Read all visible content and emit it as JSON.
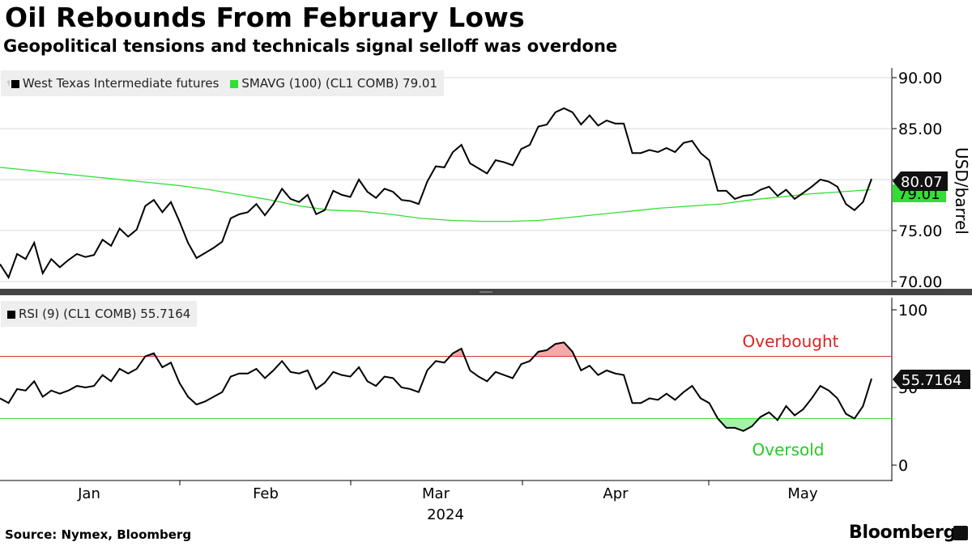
{
  "header": {
    "title": "Oil Rebounds From February Lows",
    "subtitle": "Geopolitical tensions and technicals signal selloff was overdone"
  },
  "footer": {
    "source": "Source: Nymex, Bloomberg",
    "brand": "Bloomberg"
  },
  "chart_data": [
    {
      "type": "line",
      "title": "West Texas Intermediate futures",
      "ylabel": "USD/barrel",
      "ylim": [
        69.5,
        91
      ],
      "yticks": [
        70,
        75,
        80,
        85,
        90
      ],
      "ytick_labels": [
        "70.00",
        "75.00",
        "80.00",
        "85.00",
        "90.00"
      ],
      "legend": [
        "West Texas Intermediate futures",
        "SMAVG (100) (CL1 COMB) 79.01"
      ],
      "last_value_labels": [
        "80.07",
        "79.01"
      ],
      "series": [
        {
          "name": "West Texas Intermediate futures",
          "color": "#000000",
          "values": [
            71.7,
            70.4,
            72.7,
            72.2,
            73.8,
            70.8,
            72.2,
            71.4,
            72.1,
            72.7,
            72.4,
            72.6,
            74.1,
            73.5,
            75.2,
            74.4,
            75.1,
            77.4,
            78.0,
            76.8,
            77.8,
            75.9,
            73.8,
            72.3,
            72.8,
            73.3,
            73.9,
            76.2,
            76.6,
            76.8,
            77.6,
            76.5,
            77.6,
            79.1,
            78.1,
            77.8,
            78.5,
            76.6,
            77.0,
            78.9,
            78.5,
            78.3,
            80.0,
            78.8,
            78.2,
            79.1,
            78.8,
            78.0,
            77.9,
            77.6,
            79.8,
            81.3,
            81.2,
            82.7,
            83.4,
            81.6,
            81.1,
            80.6,
            81.9,
            81.7,
            81.4,
            83.0,
            83.4,
            85.2,
            85.4,
            86.6,
            87.0,
            86.6,
            85.4,
            86.3,
            85.3,
            85.8,
            85.5,
            85.5,
            82.6,
            82.6,
            82.9,
            82.7,
            83.1,
            82.7,
            83.6,
            83.8,
            82.6,
            81.9,
            78.9,
            78.9,
            78.1,
            78.4,
            78.5,
            79.0,
            79.3,
            78.4,
            79.0,
            78.1,
            78.7,
            79.3,
            80.0,
            79.8,
            79.3,
            77.6,
            77.0,
            77.8,
            80.07
          ]
        },
        {
          "name": "SMAVG (100) (CL1 COMB)",
          "color": "#33dd33",
          "values": [
            81.2,
            80.9,
            80.6,
            80.3,
            80.0,
            79.7,
            79.4,
            79.0,
            78.5,
            78.0,
            77.4,
            77.0,
            76.9,
            76.6,
            76.2,
            76.0,
            75.9,
            75.9,
            76.0,
            76.3,
            76.6,
            76.9,
            77.2,
            77.4,
            77.6,
            78.0,
            78.3,
            78.6,
            78.8,
            79.01
          ]
        }
      ]
    },
    {
      "type": "line",
      "title": "RSI (9) (CL1 COMB) 55.7164",
      "ylim": [
        -5,
        105
      ],
      "yticks": [
        0,
        50,
        100
      ],
      "ytick_labels": [
        "0",
        "50",
        "100"
      ],
      "last_value_label": "55.7164",
      "thresholds": [
        {
          "name": "Overbought",
          "value": 70,
          "color": "#dd2222"
        },
        {
          "name": "Oversold",
          "value": 30,
          "color": "#33dd33"
        }
      ],
      "x_tick_labels": [
        "Jan",
        "Feb",
        "Mar",
        "Apr",
        "May"
      ],
      "x_year_label": "2024",
      "series": [
        {
          "name": "RSI (9) (CL1 COMB)",
          "color": "#000000",
          "values": [
            43,
            40,
            49,
            48,
            54,
            44,
            48,
            46,
            48,
            51,
            50,
            51,
            58,
            54,
            62,
            59,
            62,
            70,
            72,
            63,
            66,
            53,
            44,
            39,
            41,
            44,
            47,
            57,
            59,
            59,
            62,
            56,
            61,
            67,
            60,
            59,
            61,
            49,
            53,
            60,
            58,
            57,
            63,
            54,
            51,
            57,
            56,
            50,
            49,
            47,
            61,
            67,
            66,
            72,
            75,
            61,
            57,
            54,
            60,
            58,
            56,
            65,
            67,
            73,
            74,
            78,
            79,
            73,
            61,
            64,
            58,
            61,
            59,
            58,
            40,
            40,
            43,
            42,
            46,
            42,
            47,
            51,
            43,
            40,
            30,
            24,
            24,
            22,
            25,
            31,
            34,
            29,
            38,
            32,
            36,
            43,
            51,
            48,
            43,
            33,
            30,
            38,
            55.7164
          ]
        }
      ]
    }
  ],
  "colors": {
    "price_line": "#000000",
    "sma_line": "#33dd33",
    "overbought": "#dd2222",
    "oversold": "#33dd33",
    "label_bg": "#111111",
    "legend_bg": "#eeeeee"
  }
}
